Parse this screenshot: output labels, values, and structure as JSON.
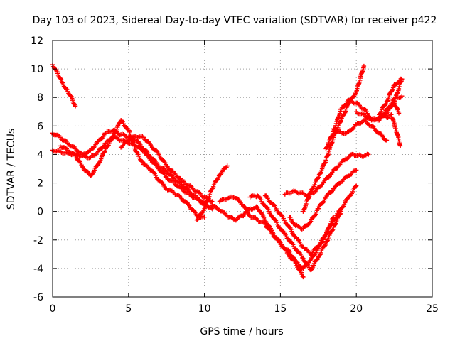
{
  "chart_data": {
    "type": "scatter",
    "title": "Day 103 of 2023, Sidereal Day-to-day VTEC variation (SDTVAR) for receiver p422",
    "xlabel": "GPS time / hours",
    "ylabel": "SDTVAR / TECUs",
    "xlim": [
      0,
      25
    ],
    "ylim": [
      -6,
      12
    ],
    "xticks": [
      0,
      5,
      10,
      15,
      20,
      25
    ],
    "yticks": [
      -6,
      -4,
      -2,
      0,
      2,
      4,
      6,
      8,
      10,
      12
    ],
    "xtick_labels": [
      "0",
      "5",
      "10",
      "15",
      "20",
      "25"
    ],
    "ytick_labels": [
      "-6",
      "-4",
      "-2",
      "0",
      "2",
      "4",
      "6",
      "8",
      "10",
      "12"
    ],
    "grid": true,
    "marker": "plus",
    "color": "#ff0000",
    "series": [
      {
        "x": [
          0.0,
          0.3,
          0.6,
          0.9,
          1.2,
          1.5
        ],
        "y": [
          10.3,
          9.8,
          9.1,
          8.6,
          8.1,
          7.4
        ]
      },
      {
        "x": [
          0.0,
          0.5,
          1.0,
          1.5,
          2.0,
          2.5,
          3.0,
          3.5,
          4.0,
          4.5,
          5.0,
          5.5,
          6.0,
          6.5,
          7.0,
          7.5,
          8.0,
          8.5,
          9.0,
          9.5,
          10.0
        ],
        "y": [
          4.3,
          4.2,
          4.1,
          4.0,
          3.9,
          3.8,
          4.2,
          4.8,
          5.2,
          5.0,
          4.8,
          4.6,
          4.2,
          3.6,
          3.0,
          2.4,
          2.0,
          1.6,
          1.2,
          0.9,
          0.5
        ]
      },
      {
        "x": [
          0.0,
          0.5,
          1.0,
          1.5,
          2.0,
          2.5,
          3.0,
          3.5,
          4.0,
          4.5,
          5.0,
          5.5,
          6.0,
          6.5,
          7.0,
          7.5,
          8.0,
          8.5,
          9.0,
          9.5,
          10.0,
          10.5
        ],
        "y": [
          5.5,
          5.2,
          4.8,
          4.4,
          4.0,
          4.3,
          4.9,
          5.5,
          5.7,
          5.4,
          5.2,
          5.0,
          4.4,
          3.8,
          3.2,
          2.8,
          2.3,
          1.9,
          1.4,
          1.0,
          0.6,
          0.2
        ]
      },
      {
        "x": [
          0.5,
          1.0,
          1.5,
          2.0,
          2.5,
          3.0,
          3.5,
          4.0,
          4.5,
          5.0,
          5.5,
          6.0,
          6.5,
          7.0,
          7.5,
          8.0,
          8.5,
          9.0,
          9.5,
          10.0
        ],
        "y": [
          4.6,
          4.3,
          3.9,
          3.1,
          2.5,
          3.3,
          4.4,
          5.3,
          6.4,
          5.7,
          4.2,
          3.3,
          2.9,
          2.2,
          1.6,
          1.3,
          0.9,
          0.4,
          -0.3,
          -0.4
        ]
      },
      {
        "x": [
          4.5,
          5.0,
          5.5,
          6.0,
          6.5,
          7.0,
          7.5,
          8.0,
          8.5,
          9.0,
          9.5,
          10.0,
          10.5
        ],
        "y": [
          4.5,
          5.0,
          5.3,
          5.2,
          4.6,
          4.0,
          3.2,
          2.7,
          2.2,
          1.8,
          1.4,
          1.0,
          0.7
        ]
      },
      {
        "x": [
          9.5,
          10.0,
          10.5,
          11.0,
          11.5
        ],
        "y": [
          -0.6,
          0.2,
          1.6,
          2.6,
          3.2
        ]
      },
      {
        "x": [
          10.5,
          11.0,
          11.5,
          12.0,
          12.5,
          13.0,
          13.5,
          14.0,
          14.5,
          15.0,
          15.5,
          16.0,
          16.5,
          17.0,
          17.5,
          18.0,
          18.5
        ],
        "y": [
          0.4,
          0.1,
          -0.3,
          -0.6,
          -0.3,
          0.2,
          0.3,
          -0.6,
          -1.5,
          -2.3,
          -2.7,
          -3.5,
          -4.0,
          -3.4,
          -2.6,
          -1.6,
          -0.4
        ]
      },
      {
        "x": [
          11.0,
          11.5,
          12.0,
          12.5,
          13.0,
          13.5,
          14.0,
          14.5,
          15.0,
          15.5,
          16.0,
          16.5
        ],
        "y": [
          0.7,
          0.9,
          1.0,
          0.5,
          -0.3,
          -0.6,
          -0.9,
          -1.6,
          -2.2,
          -3.0,
          -3.6,
          -4.6
        ]
      },
      {
        "x": [
          13.0,
          13.5,
          14.0,
          14.5,
          15.0,
          15.5,
          16.0,
          16.5,
          17.0,
          17.5,
          18.0,
          18.5,
          19.0
        ],
        "y": [
          1.0,
          1.1,
          0.4,
          -0.4,
          -1.2,
          -1.9,
          -2.6,
          -3.3,
          -4.1,
          -3.2,
          -2.2,
          -1.1,
          0.0
        ]
      },
      {
        "x": [
          14.0,
          14.5,
          15.0,
          15.5,
          16.0,
          16.5,
          17.0,
          17.5,
          18.0,
          18.5,
          19.0,
          19.5,
          20.0
        ],
        "y": [
          1.1,
          0.5,
          -0.2,
          -1.0,
          -1.8,
          -2.5,
          -3.0,
          -2.4,
          -1.6,
          -0.6,
          0.2,
          1.0,
          1.8
        ]
      },
      {
        "x": [
          15.3,
          15.8,
          16.3,
          16.8,
          17.3,
          17.8,
          18.3,
          18.8,
          19.3,
          19.8,
          20.3,
          20.8
        ],
        "y": [
          1.2,
          1.4,
          1.3,
          1.1,
          1.4,
          2.0,
          2.6,
          3.2,
          3.7,
          4.0,
          3.9,
          4.0
        ]
      },
      {
        "x": [
          15.6,
          16.0,
          16.5,
          17.0,
          17.5,
          18.0,
          18.5,
          19.0,
          19.5,
          20.0
        ],
        "y": [
          -0.4,
          -1.0,
          -1.2,
          -0.7,
          0.2,
          1.0,
          1.6,
          2.1,
          2.5,
          2.9
        ]
      },
      {
        "x": [
          16.5,
          17.0,
          17.5,
          18.0,
          18.5,
          19.0,
          19.5,
          20.0,
          20.5
        ],
        "y": [
          0.0,
          1.4,
          2.4,
          3.6,
          5.2,
          6.4,
          7.6,
          8.4,
          10.2
        ]
      },
      {
        "x": [
          18.0,
          18.5,
          19.0,
          19.5,
          20.0,
          20.5,
          21.0,
          21.5,
          22.0,
          22.5,
          23.0
        ],
        "y": [
          4.4,
          5.6,
          7.2,
          7.8,
          7.6,
          7.2,
          6.5,
          6.4,
          6.9,
          7.7,
          9.3
        ]
      },
      {
        "x": [
          18.5,
          19.0,
          19.5,
          20.0,
          20.5,
          21.0,
          21.5,
          22.0
        ],
        "y": [
          5.8,
          5.5,
          5.6,
          6.1,
          6.4,
          6.0,
          5.5,
          5.0
        ]
      },
      {
        "x": [
          20.0,
          20.5,
          21.0,
          21.5,
          22.0,
          22.5,
          23.0
        ],
        "y": [
          7.0,
          6.8,
          6.4,
          6.6,
          7.1,
          7.9,
          8.1
        ]
      },
      {
        "x": [
          21.5,
          22.0,
          22.5,
          23.0
        ],
        "y": [
          6.8,
          7.7,
          8.9,
          9.3
        ]
      },
      {
        "x": [
          22.0,
          22.3,
          22.6,
          22.9
        ],
        "y": [
          6.6,
          6.8,
          5.8,
          4.6
        ]
      },
      {
        "x": [
          22.2,
          22.5,
          22.8
        ],
        "y": [
          7.3,
          7.6,
          6.9
        ]
      }
    ]
  }
}
